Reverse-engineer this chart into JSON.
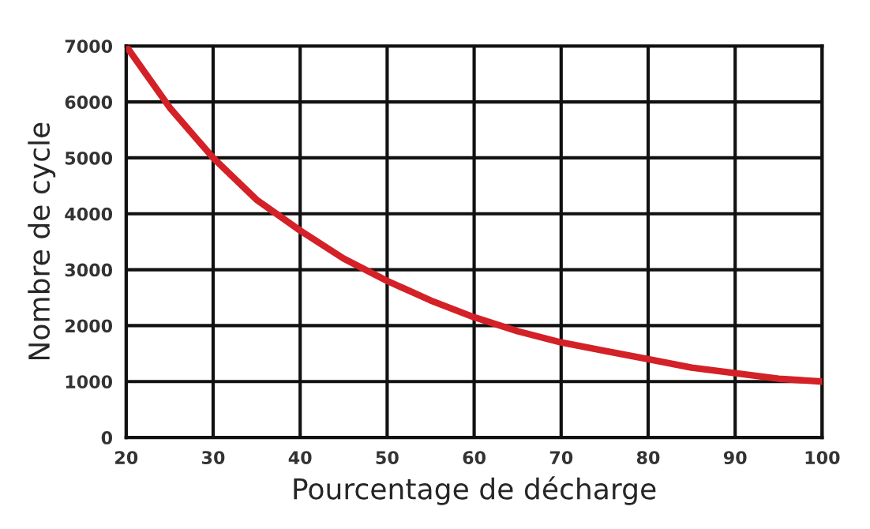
{
  "chart_data": {
    "type": "line",
    "xlabel": "Pourcentage de décharge",
    "ylabel": "Nombre de cycle",
    "x": [
      20,
      25,
      30,
      35,
      40,
      45,
      50,
      55,
      60,
      65,
      70,
      75,
      80,
      85,
      90,
      95,
      100
    ],
    "series": [
      {
        "color": "#d42027",
        "values": [
          7000,
          5900,
          5000,
          4250,
          3700,
          3200,
          2800,
          2450,
          2150,
          1900,
          1700,
          1550,
          1400,
          1250,
          1150,
          1050,
          1000
        ]
      }
    ],
    "xlim": [
      20,
      100
    ],
    "xticks": [
      20,
      30,
      40,
      50,
      60,
      70,
      80,
      90,
      100
    ],
    "ylim": [
      0,
      7000
    ],
    "yticks": [
      0,
      1000,
      2000,
      3000,
      4000,
      5000,
      6000,
      7000
    ],
    "grid": true,
    "legend": false,
    "marker": "none",
    "line_style": "solid"
  }
}
